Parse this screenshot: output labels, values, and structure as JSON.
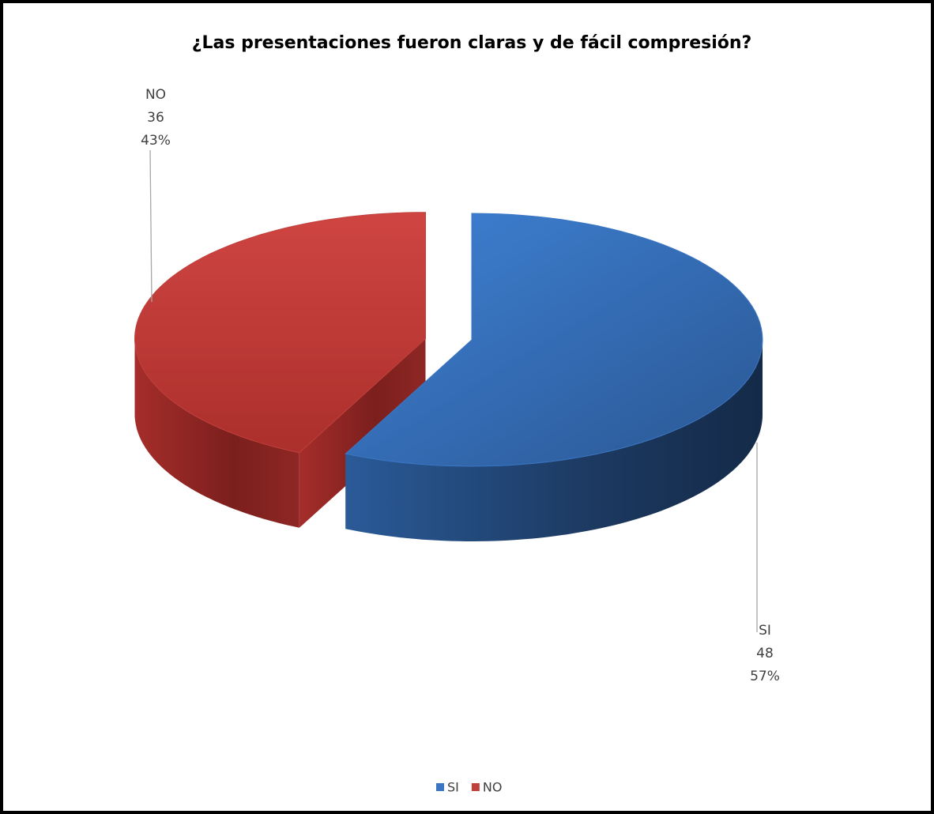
{
  "chart_data": {
    "type": "pie3d",
    "title": "¿Las presentaciones fueron claras y de fácil compresión?",
    "categories": [
      "SI",
      "NO"
    ],
    "values": [
      48,
      36
    ],
    "percent_labels": [
      "57%",
      "43%"
    ],
    "colors": [
      "#3b76c4",
      "#c0403c"
    ],
    "explode": [
      false,
      true
    ],
    "legend": "bottom"
  }
}
